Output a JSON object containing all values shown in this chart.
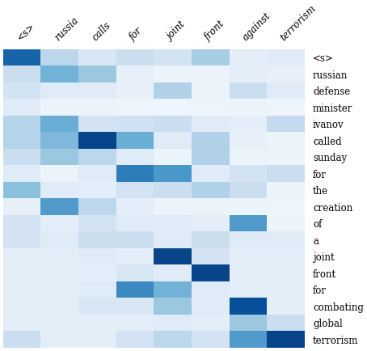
{
  "x_labels": [
    "<s>",
    "russia",
    "calls",
    "for",
    "joint",
    "front",
    "against",
    "terrorism"
  ],
  "y_labels": [
    "<s>",
    "russian",
    "defense",
    "minister",
    "ivanov",
    "called",
    "sunday",
    "for",
    "the",
    "creation",
    "of",
    "a",
    "joint",
    "front",
    "for",
    "combating",
    "global",
    "terrorism"
  ],
  "matrix": [
    [
      0.8,
      0.28,
      0.15,
      0.22,
      0.18,
      0.35,
      0.1,
      0.12
    ],
    [
      0.22,
      0.48,
      0.38,
      0.08,
      0.06,
      0.06,
      0.1,
      0.08
    ],
    [
      0.18,
      0.12,
      0.12,
      0.08,
      0.32,
      0.06,
      0.22,
      0.12
    ],
    [
      0.12,
      0.06,
      0.06,
      0.05,
      0.05,
      0.05,
      0.06,
      0.05
    ],
    [
      0.3,
      0.5,
      0.18,
      0.2,
      0.22,
      0.12,
      0.1,
      0.25
    ],
    [
      0.3,
      0.45,
      0.92,
      0.5,
      0.12,
      0.32,
      0.08,
      0.06
    ],
    [
      0.22,
      0.38,
      0.28,
      0.12,
      0.06,
      0.32,
      0.06,
      0.06
    ],
    [
      0.12,
      0.06,
      0.12,
      0.7,
      0.6,
      0.12,
      0.18,
      0.22
    ],
    [
      0.42,
      0.12,
      0.1,
      0.18,
      0.22,
      0.32,
      0.22,
      0.06
    ],
    [
      0.08,
      0.58,
      0.28,
      0.1,
      0.06,
      0.06,
      0.06,
      0.05
    ],
    [
      0.18,
      0.1,
      0.18,
      0.12,
      0.12,
      0.1,
      0.58,
      0.06
    ],
    [
      0.18,
      0.12,
      0.22,
      0.22,
      0.12,
      0.22,
      0.12,
      0.12
    ],
    [
      0.1,
      0.1,
      0.12,
      0.1,
      0.92,
      0.18,
      0.1,
      0.1
    ],
    [
      0.1,
      0.1,
      0.1,
      0.15,
      0.12,
      0.92,
      0.1,
      0.1
    ],
    [
      0.1,
      0.1,
      0.12,
      0.65,
      0.48,
      0.12,
      0.1,
      0.1
    ],
    [
      0.1,
      0.1,
      0.15,
      0.15,
      0.38,
      0.12,
      0.88,
      0.1
    ],
    [
      0.1,
      0.1,
      0.1,
      0.1,
      0.12,
      0.1,
      0.38,
      0.22
    ],
    [
      0.22,
      0.1,
      0.1,
      0.18,
      0.28,
      0.18,
      0.58,
      0.92
    ]
  ],
  "cmap": "Blues",
  "background_color": "#ffffff",
  "font_size_ticks": 8.5,
  "vmin": 0,
  "vmax": 1
}
